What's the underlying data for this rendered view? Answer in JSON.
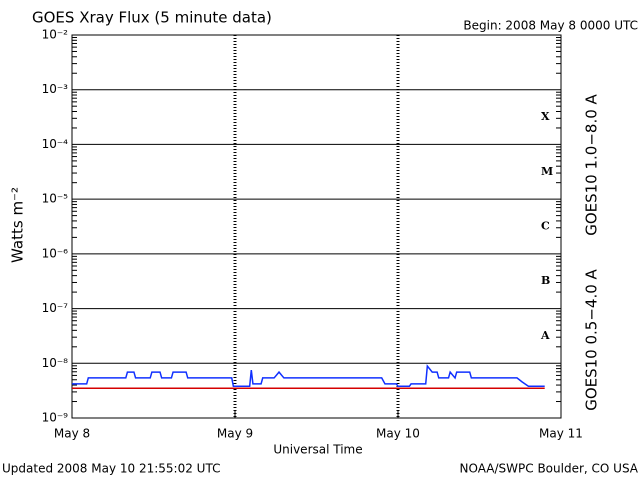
{
  "chart_data": {
    "type": "line",
    "title": "GOES Xray Flux (5 minute data)",
    "subtitle": "Begin:  2008 May 8 0000 UTC",
    "x_label": "Universal Time",
    "y_label": "Watts m⁻²",
    "footer_left": "Updated 2008 May 10 21:55:02 UTC",
    "footer_right": "NOAA/SWPC Boulder, CO USA",
    "log_y": true,
    "grid": true,
    "xlim": [
      0,
      3
    ],
    "xticks": [
      {
        "value": 0,
        "label": "May 8"
      },
      {
        "value": 1,
        "label": "May 9"
      },
      {
        "value": 2,
        "label": "May 10"
      },
      {
        "value": 3,
        "label": "May 11"
      }
    ],
    "ylim": [
      1e-09,
      0.01
    ],
    "yticks": [
      {
        "value": 1e-09,
        "label": "10⁻⁹"
      },
      {
        "value": 1e-08,
        "label": "10⁻⁸"
      },
      {
        "value": 1e-07,
        "label": "10⁻⁷"
      },
      {
        "value": 1e-06,
        "label": "10⁻⁶"
      },
      {
        "value": 1e-05,
        "label": "10⁻⁵"
      },
      {
        "value": 0.0001,
        "label": "10⁻⁴"
      },
      {
        "value": 0.001,
        "label": "10⁻³"
      },
      {
        "value": 0.01,
        "label": "10⁻²"
      }
    ],
    "flare_classes": [
      "X",
      "M",
      "C",
      "B",
      "A"
    ],
    "series": [
      {
        "name": "GOES10 1.0−8.0 A",
        "color": "#d40000",
        "x": [
          0,
          2.9
        ],
        "values": [
          3.5e-09,
          3.5e-09
        ]
      },
      {
        "name": "GOES10 0.5−4.0 A",
        "color": "#1030ff",
        "x": [
          0,
          0.09,
          0.1,
          0.33,
          0.34,
          0.38,
          0.39,
          0.48,
          0.49,
          0.54,
          0.55,
          0.61,
          0.62,
          0.7,
          0.71,
          0.98,
          0.99,
          1.09,
          1.1,
          1.11,
          1.16,
          1.17,
          1.24,
          1.27,
          1.3,
          1.65,
          1.9,
          1.92,
          1.99,
          2.0,
          2.07,
          2.08,
          2.17,
          2.18,
          2.21,
          2.24,
          2.25,
          2.31,
          2.32,
          2.35,
          2.36,
          2.44,
          2.45,
          2.73,
          2.76,
          2.8,
          2.9
        ],
        "values": [
          4.2e-09,
          4.2e-09,
          5.4e-09,
          5.4e-09,
          6.9e-09,
          6.9e-09,
          5.4e-09,
          5.4e-09,
          6.9e-09,
          6.9e-09,
          5.4e-09,
          5.4e-09,
          6.9e-09,
          6.9e-09,
          5.4e-09,
          5.4e-09,
          3.8e-09,
          3.8e-09,
          7.5e-09,
          4.2e-09,
          4.2e-09,
          5.4e-09,
          5.4e-09,
          6.9e-09,
          5.4e-09,
          5.4e-09,
          5.4e-09,
          4.2e-09,
          4.2e-09,
          3.8e-09,
          3.8e-09,
          4.2e-09,
          4.2e-09,
          8.9e-09,
          6.9e-09,
          6.9e-09,
          5.4e-09,
          5.4e-09,
          6.9e-09,
          5.4e-09,
          6.9e-09,
          6.9e-09,
          5.4e-09,
          5.4e-09,
          4.6e-09,
          3.8e-09,
          3.8e-09
        ]
      }
    ]
  }
}
